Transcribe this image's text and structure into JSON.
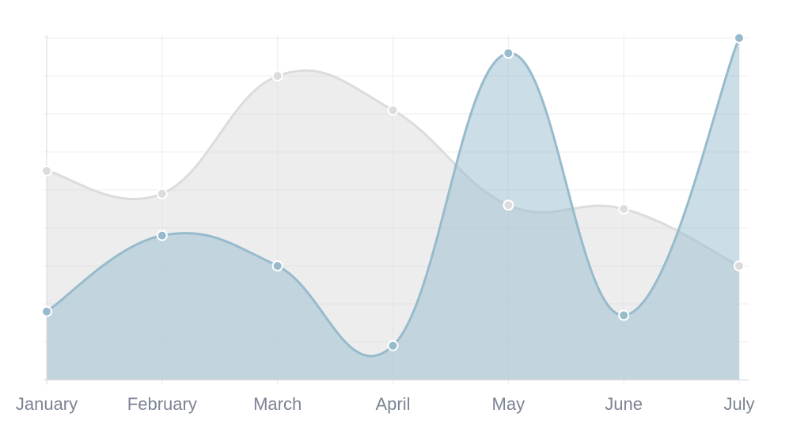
{
  "chart_data": {
    "type": "area",
    "categories": [
      "January",
      "February",
      "March",
      "April",
      "May",
      "June",
      "July"
    ],
    "series": [
      {
        "values": [
          55,
          49,
          80,
          71,
          46,
          45,
          30
        ],
        "color": "#dcdcdc",
        "fill": "rgba(220,220,220,0.5)"
      },
      {
        "values": [
          18,
          38,
          30,
          9,
          86,
          17,
          90
        ],
        "color": "#97bbcd",
        "fill": "rgba(151,187,205,0.5)"
      }
    ],
    "ylim": [
      0,
      90
    ],
    "grid": true,
    "legend": false
  }
}
